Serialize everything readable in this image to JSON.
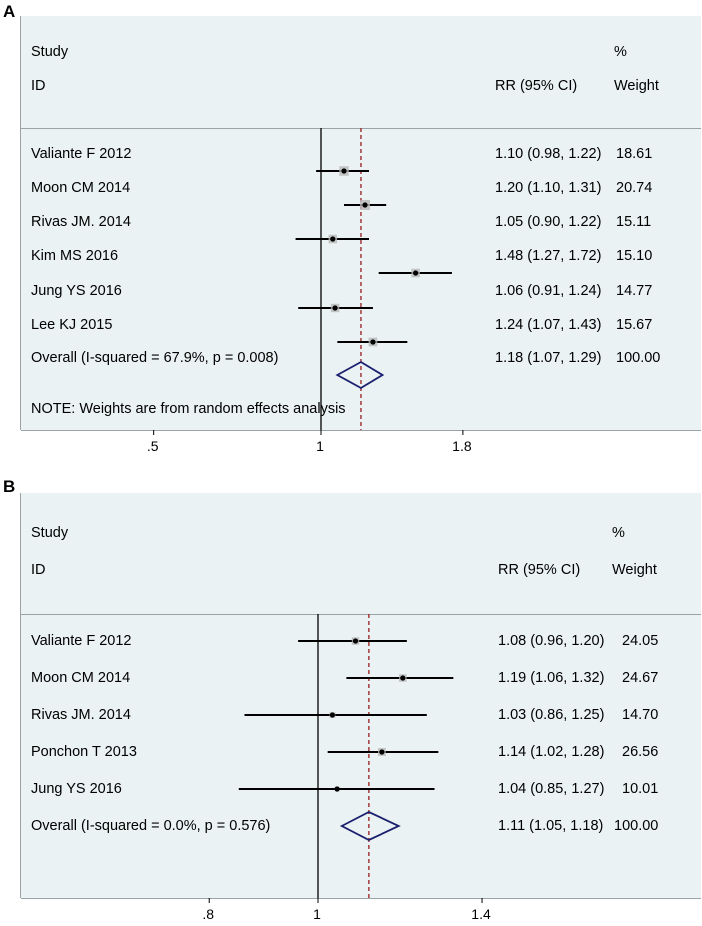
{
  "chart_data": [
    {
      "panel": "A",
      "type": "forest",
      "col_headers": {
        "study": "Study",
        "id": "ID",
        "rr": "RR (95% CI)",
        "pct": "%",
        "weight": "Weight"
      },
      "axis_ticks": [
        0.5,
        1,
        1.8
      ],
      "axis_tick_labels": [
        ".5",
        "1",
        "1.8"
      ],
      "reference_line": 1,
      "studies": [
        {
          "name": "Valiante F 2012",
          "rr": 1.1,
          "lo": 0.98,
          "hi": 1.22,
          "rr_text": "1.10 (0.98, 1.22)",
          "weight": "18.61"
        },
        {
          "name": "Moon CM 2014",
          "rr": 1.2,
          "lo": 1.1,
          "hi": 1.31,
          "rr_text": "1.20 (1.10, 1.31)",
          "weight": "20.74"
        },
        {
          "name": "Rivas JM. 2014",
          "rr": 1.05,
          "lo": 0.9,
          "hi": 1.22,
          "rr_text": "1.05 (0.90, 1.22)",
          "weight": "15.11"
        },
        {
          "name": "Kim MS 2016",
          "rr": 1.48,
          "lo": 1.27,
          "hi": 1.72,
          "rr_text": "1.48 (1.27, 1.72)",
          "weight": "15.10"
        },
        {
          "name": "Jung YS 2016",
          "rr": 1.06,
          "lo": 0.91,
          "hi": 1.24,
          "rr_text": "1.06 (0.91, 1.24)",
          "weight": "14.77"
        },
        {
          "name": "Lee KJ 2015",
          "rr": 1.24,
          "lo": 1.07,
          "hi": 1.43,
          "rr_text": "1.24 (1.07, 1.43)",
          "weight": "15.67"
        }
      ],
      "overall": {
        "label": "Overall  (I-squared = 67.9%, p = 0.008)",
        "rr": 1.18,
        "lo": 1.07,
        "hi": 1.29,
        "rr_text": "1.18 (1.07, 1.29)",
        "weight": "100.00"
      },
      "note": "NOTE: Weights are from random effects analysis"
    },
    {
      "panel": "B",
      "type": "forest",
      "col_headers": {
        "study": "Study",
        "id": "ID",
        "rr": "RR (95% CI)",
        "pct": "%",
        "weight": "Weight"
      },
      "axis_ticks": [
        0.8,
        1,
        1.4
      ],
      "axis_tick_labels": [
        ".8",
        "1",
        "1.4"
      ],
      "reference_line": 1,
      "studies": [
        {
          "name": "Valiante F 2012",
          "rr": 1.08,
          "lo": 0.96,
          "hi": 1.2,
          "rr_text": "1.08 (0.96, 1.20)",
          "weight": "24.05"
        },
        {
          "name": "Moon CM 2014",
          "rr": 1.19,
          "lo": 1.06,
          "hi": 1.32,
          "rr_text": "1.19 (1.06, 1.32)",
          "weight": "24.67"
        },
        {
          "name": "Rivas JM. 2014",
          "rr": 1.03,
          "lo": 0.86,
          "hi": 1.25,
          "rr_text": "1.03 (0.86, 1.25)",
          "weight": "14.70"
        },
        {
          "name": "Ponchon T 2013",
          "rr": 1.14,
          "lo": 1.02,
          "hi": 1.28,
          "rr_text": "1.14 (1.02, 1.28)",
          "weight": "26.56"
        },
        {
          "name": "Jung YS 2016",
          "rr": 1.04,
          "lo": 0.85,
          "hi": 1.27,
          "rr_text": "1.04 (0.85, 1.27)",
          "weight": "10.01"
        }
      ],
      "overall": {
        "label": "Overall  (I-squared = 0.0%, p = 0.576)",
        "rr": 1.11,
        "lo": 1.05,
        "hi": 1.18,
        "rr_text": "1.11 (1.05, 1.18)",
        "weight": "100.00"
      },
      "note": ""
    }
  ],
  "colors": {
    "panel_bg": "#eaf2f3",
    "diamond": "#1a1f6e",
    "dashed": "#9b1c1c",
    "box": "#b8b8b8"
  }
}
